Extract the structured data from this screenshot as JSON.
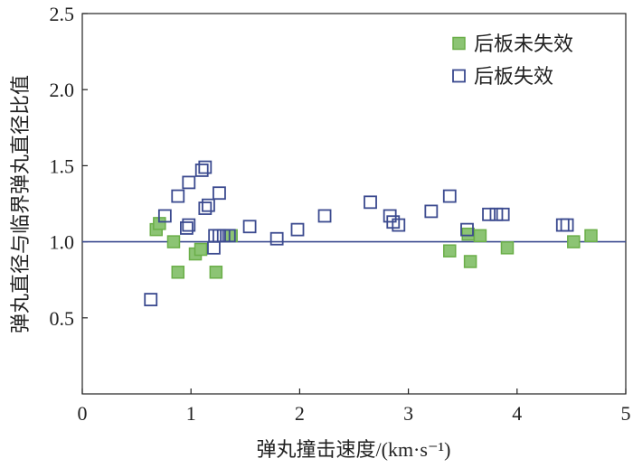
{
  "chart_data": {
    "type": "scatter",
    "xlabel": "弹丸撞击速度/(km·s⁻¹)",
    "ylabel": "弹丸直径与临界弹丸直径比值",
    "xlim": [
      0,
      5
    ],
    "ylim": [
      0,
      2.5
    ],
    "xticks": [
      "0",
      "1",
      "2",
      "3",
      "4",
      "5"
    ],
    "yticks": [
      "0.5",
      "1.0",
      "1.5",
      "2.0",
      "2.5"
    ],
    "grid": false,
    "legend_placement": "top-right",
    "reference_line": {
      "y": 1.0,
      "color": "#3b4a8f"
    },
    "series": [
      {
        "name": "后板未失效",
        "marker": "filled-square",
        "color": "#8cc474",
        "edge": "#6aae48",
        "points": [
          [
            0.68,
            1.08
          ],
          [
            0.71,
            1.12
          ],
          [
            0.84,
            1.0
          ],
          [
            0.88,
            0.8
          ],
          [
            1.04,
            0.92
          ],
          [
            1.09,
            0.95
          ],
          [
            1.23,
            0.8
          ],
          [
            1.37,
            1.04
          ],
          [
            3.38,
            0.94
          ],
          [
            3.57,
            0.87
          ],
          [
            3.55,
            1.05
          ],
          [
            3.66,
            1.04
          ],
          [
            3.91,
            0.96
          ],
          [
            4.52,
            1.0
          ],
          [
            4.68,
            1.04
          ]
        ]
      },
      {
        "name": "后板失效",
        "marker": "open-square",
        "color": "#3b4a8f",
        "points": [
          [
            0.63,
            0.62
          ],
          [
            0.76,
            1.17
          ],
          [
            0.88,
            1.3
          ],
          [
            0.98,
            1.39
          ],
          [
            0.98,
            1.11
          ],
          [
            0.96,
            1.09
          ],
          [
            1.1,
            1.47
          ],
          [
            1.13,
            1.49
          ],
          [
            1.13,
            1.22
          ],
          [
            1.16,
            1.24
          ],
          [
            1.26,
            1.32
          ],
          [
            1.21,
            0.96
          ],
          [
            1.22,
            1.04
          ],
          [
            1.26,
            1.04
          ],
          [
            1.3,
            1.04
          ],
          [
            1.35,
            1.04
          ],
          [
            1.54,
            1.1
          ],
          [
            1.79,
            1.02
          ],
          [
            1.98,
            1.08
          ],
          [
            2.23,
            1.17
          ],
          [
            2.65,
            1.26
          ],
          [
            2.83,
            1.17
          ],
          [
            2.86,
            1.13
          ],
          [
            2.91,
            1.11
          ],
          [
            3.21,
            1.2
          ],
          [
            3.38,
            1.3
          ],
          [
            3.54,
            1.08
          ],
          [
            3.74,
            1.18
          ],
          [
            3.81,
            1.18
          ],
          [
            3.87,
            1.18
          ],
          [
            4.42,
            1.11
          ],
          [
            4.46,
            1.11
          ]
        ]
      }
    ]
  }
}
